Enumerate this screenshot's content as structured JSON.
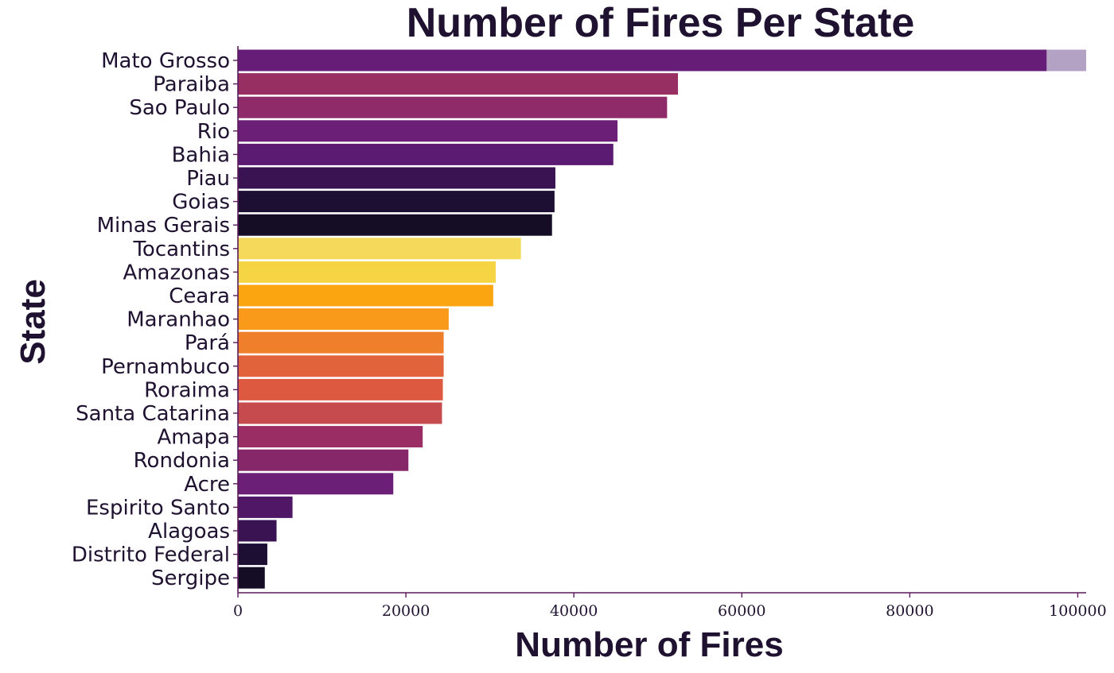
{
  "chart_data": {
    "type": "bar",
    "orientation": "horizontal",
    "title": "Number of Fires Per State",
    "xlabel": "Number of Fires",
    "ylabel": "State",
    "xlim": [
      0,
      101000
    ],
    "xticks": [
      0,
      20000,
      40000,
      60000,
      80000,
      100000
    ],
    "xtick_labels": [
      "0",
      "20000",
      "40000",
      "60000",
      "80000",
      "100000"
    ],
    "grid": false,
    "categories": [
      "Mato Grosso",
      "Paraiba",
      "Sao Paulo",
      "Rio",
      "Bahia",
      "Piau",
      "Goias",
      "Minas Gerais",
      "Tocantins",
      "Amazonas",
      "Ceara",
      "Maranhao",
      "Pará",
      "Pernambuco",
      "Roraima",
      "Santa Catarina",
      "Amapa",
      "Rondonia",
      "Acre",
      "Espirito Santo",
      "Alagoas",
      "Distrito Federal",
      "Sergipe"
    ],
    "values": [
      101000,
      52400,
      51100,
      45200,
      44700,
      37800,
      37700,
      37400,
      33700,
      30700,
      30400,
      25100,
      24500,
      24500,
      24400,
      24300,
      22000,
      20300,
      18500,
      6500,
      4600,
      3500,
      3200
    ],
    "colors": [
      "#651d78",
      "#972f62",
      "#8e2b68",
      "#6c1f76",
      "#5c1b72",
      "#3a1353",
      "#1c0f33",
      "#140d25",
      "#f5d95a",
      "#f5d544",
      "#fba610",
      "#fa9a1b",
      "#f07f2c",
      "#e0633c",
      "#dd5a40",
      "#c54b4e",
      "#9a2d63",
      "#862769",
      "#6c1f76",
      "#4f1766",
      "#3a1353",
      "#1c0f33",
      "#140d25"
    ],
    "overflow_color": "#b3a2c4",
    "overflow_from": 96300
  }
}
